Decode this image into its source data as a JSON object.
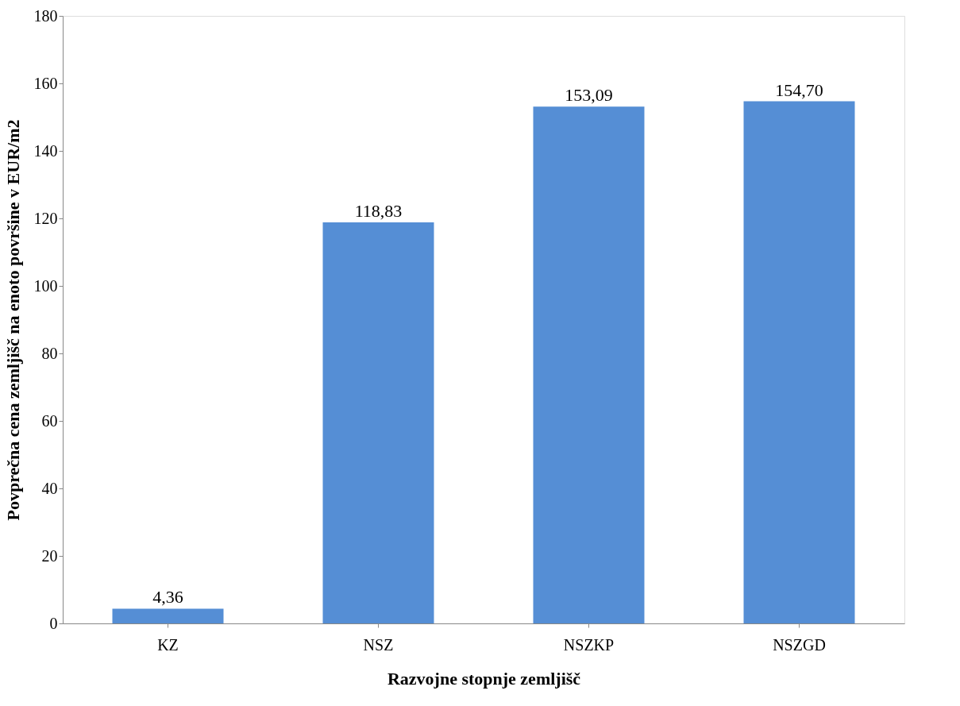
{
  "chart_data": {
    "type": "bar",
    "xlabel": "Razvojne stopnje zemljišč",
    "ylabel": "Povprečna cena zemljišč na enoto površine v EUR/m2",
    "categories": [
      "KZ",
      "NSZ",
      "NSZKP",
      "NSZGD"
    ],
    "values": [
      4.36,
      118.83,
      153.09,
      154.7
    ],
    "value_labels": [
      "4,36",
      "118,83",
      "153,09",
      "154,70"
    ],
    "color": "#558ed5",
    "ylim": [
      0,
      180
    ],
    "yticks": [
      0,
      20,
      40,
      60,
      80,
      100,
      120,
      140,
      160,
      180
    ],
    "grid": false
  }
}
